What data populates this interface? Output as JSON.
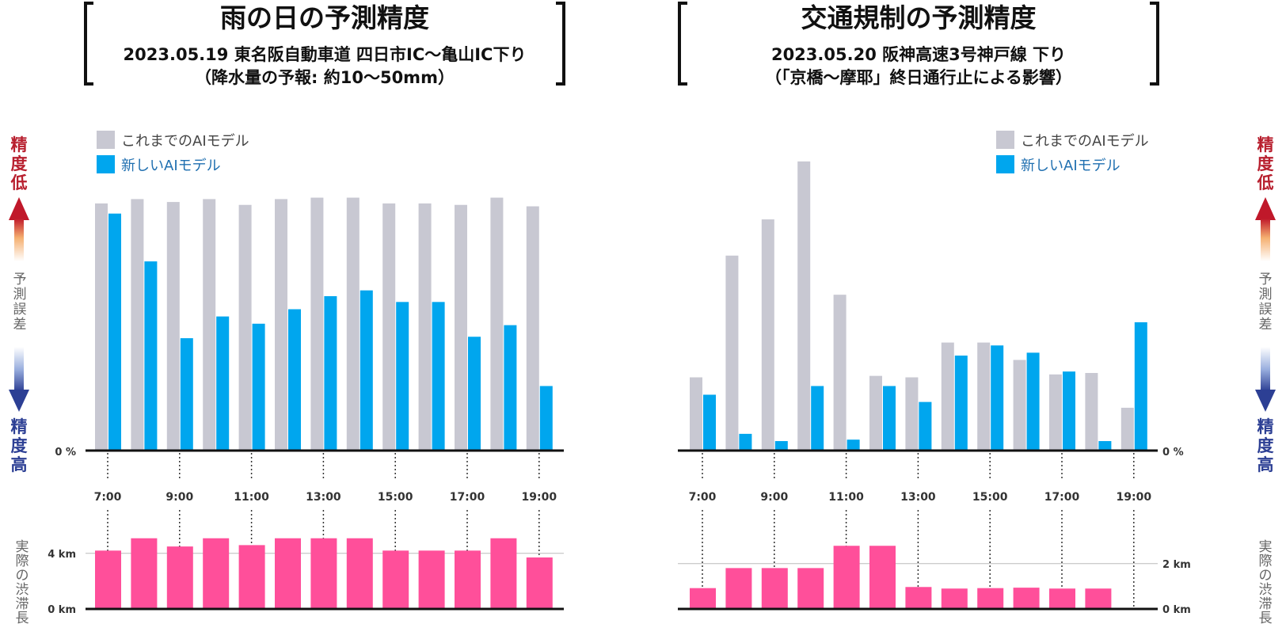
{
  "colors": {
    "old_model": "#c8c8d2",
    "new_model": "#00a6ee",
    "jam": "#ff4f9a",
    "axis": "#111111",
    "low_accuracy": "#b8202f",
    "high_accuracy": "#2c3f94"
  },
  "side_labels": {
    "low_accuracy": [
      "精",
      "度",
      "低"
    ],
    "error": [
      "予",
      "測",
      "誤",
      "差"
    ],
    "high_accuracy": [
      "精",
      "度",
      "高"
    ],
    "jam_length": [
      "実",
      "際",
      "の",
      "渋",
      "滞",
      "長"
    ]
  },
  "chart_data": [
    {
      "type": "bar",
      "title": "雨の日の予測精度",
      "subtitle_lines": [
        "2023.05.19 東名阪自動車道 四日市IC～亀山IC下り",
        "（降水量の予報: 約10～50mm）"
      ],
      "legend": [
        "これまでのAIモデル",
        "新しいAIモデル"
      ],
      "categories": [
        "7:00",
        "8:00",
        "9:00",
        "10:00",
        "11:00",
        "12:00",
        "13:00",
        "14:00",
        "15:00",
        "16:00",
        "17:00",
        "18:00",
        "19:00"
      ],
      "tick_labels": [
        "7:00",
        "9:00",
        "11:00",
        "13:00",
        "15:00",
        "17:00",
        "19:00"
      ],
      "error_axis_label": "0 %",
      "series": [
        {
          "name": "これまでのAIモデル",
          "values": [
            0.85,
            0.865,
            0.855,
            0.865,
            0.845,
            0.865,
            0.87,
            0.87,
            0.85,
            0.85,
            0.845,
            0.87,
            0.84
          ]
        },
        {
          "name": "新しいAIモデル",
          "values": [
            0.815,
            0.65,
            0.385,
            0.46,
            0.435,
            0.485,
            0.53,
            0.55,
            0.51,
            0.51,
            0.39,
            0.43,
            0.22
          ]
        }
      ],
      "jam": {
        "tick_labels": [
          "0 km",
          "4 km"
        ],
        "ylim": [
          0,
          5.2
        ],
        "values_km": [
          4.2,
          5.1,
          4.5,
          5.1,
          4.6,
          5.1,
          5.1,
          5.1,
          4.2,
          4.2,
          4.2,
          5.1,
          3.7
        ]
      }
    },
    {
      "type": "bar",
      "title": "交通規制の予測精度",
      "subtitle_lines": [
        "2023.05.20 阪神高速3号神戸線 下り",
        "（「京橋～摩耶」終日通行止による影響）"
      ],
      "legend": [
        "これまでのAIモデル",
        "新しいAIモデル"
      ],
      "categories": [
        "7:00",
        "8:00",
        "9:00",
        "10:00",
        "11:00",
        "12:00",
        "13:00",
        "14:00",
        "15:00",
        "16:00",
        "17:00",
        "18:00",
        "19:00"
      ],
      "tick_labels": [
        "7:00",
        "9:00",
        "11:00",
        "13:00",
        "15:00",
        "17:00",
        "19:00"
      ],
      "error_axis_label": "0 %",
      "series": [
        {
          "name": "これまでのAIモデル",
          "values": [
            0.25,
            0.67,
            0.795,
            0.995,
            0.535,
            0.255,
            0.25,
            0.37,
            0.37,
            0.31,
            0.26,
            0.265,
            0.145
          ]
        },
        {
          "name": "新しいAIモデル",
          "values": [
            0.19,
            0.055,
            0.03,
            0.22,
            0.035,
            0.22,
            0.165,
            0.325,
            0.36,
            0.335,
            0.27,
            0.03,
            0.44
          ]
        }
      ],
      "jam": {
        "tick_labels": [
          "0 km",
          "2 km"
        ],
        "ylim": [
          0,
          3.2
        ],
        "values_km": [
          0.9,
          1.8,
          1.8,
          1.8,
          2.8,
          2.8,
          0.95,
          0.88,
          0.9,
          0.92,
          0.88,
          0.88,
          0
        ]
      }
    }
  ]
}
